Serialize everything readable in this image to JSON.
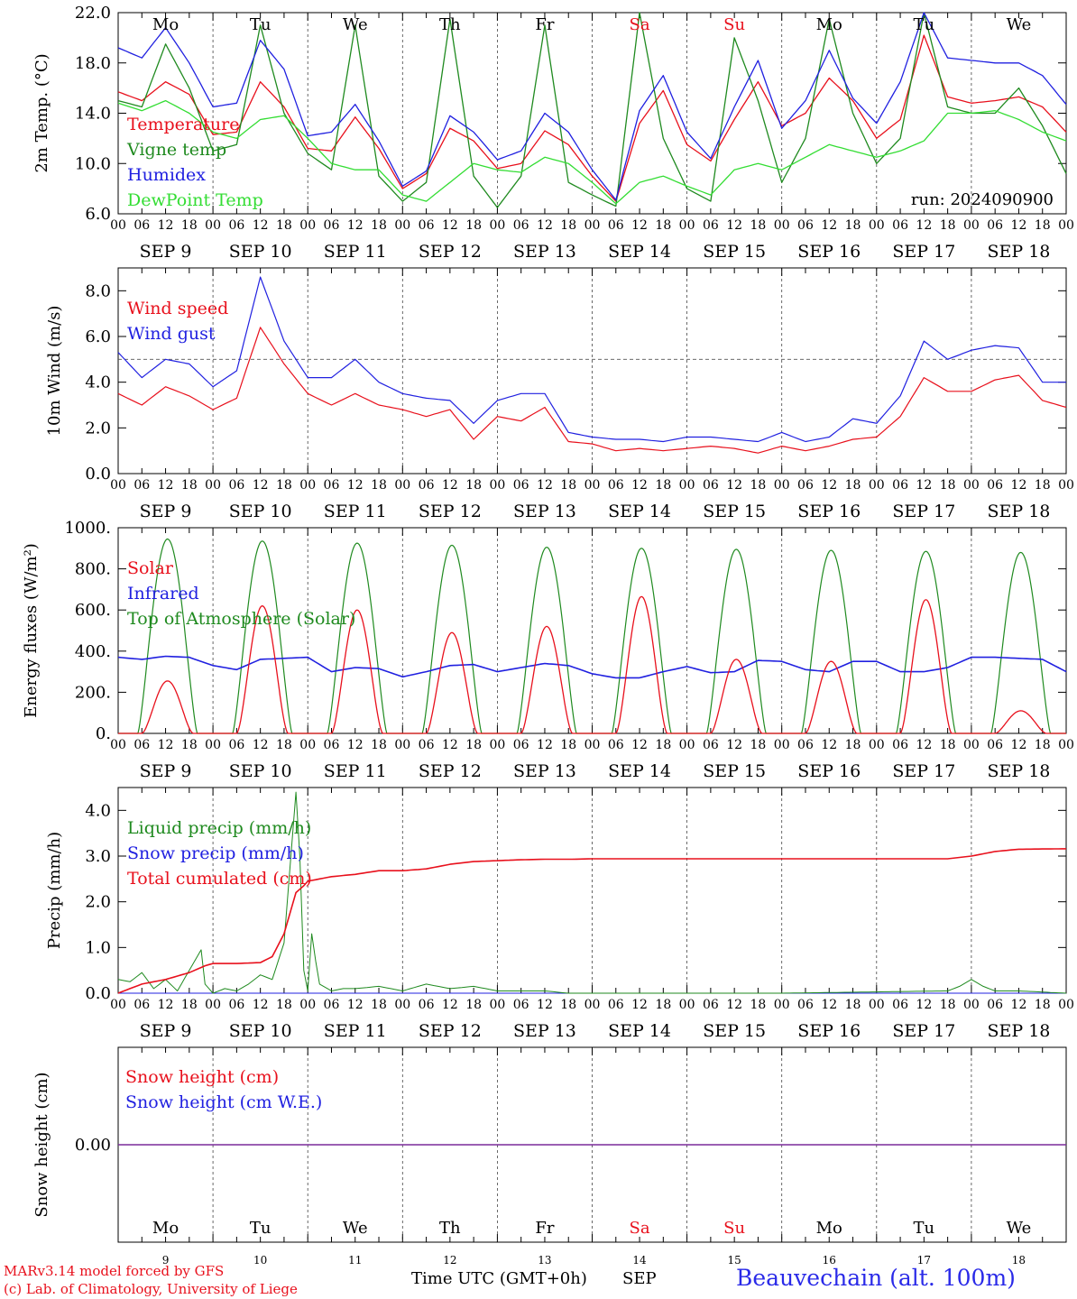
{
  "footer": {
    "model": "MARv3.14 model forced by GFS",
    "lab": "(c) Lab. of Climatology, University of Liege",
    "xlabel": "Time UTC (GMT+0h)",
    "month": "SEP",
    "station": "Beauvechain (alt. 100m)"
  },
  "colors": {
    "red": "#e8101c",
    "green": "#1f8a1f",
    "blue": "#2020e0",
    "lightgreen": "#33dd33",
    "purple": "#7a2a9a",
    "weekend": "#e8101c"
  },
  "chart_data": [
    {
      "type": "line",
      "ylabel": "2m Temp. (°C)",
      "ylim": [
        6,
        22
      ],
      "yticks": [
        "6.0",
        "10.0",
        "14.0",
        "18.0",
        "22.0"
      ],
      "xlim_hours": [
        0,
        240
      ],
      "annotation": "run: 2024090900",
      "series": [
        {
          "name": "Temperature",
          "color": "red",
          "x": [
            0,
            6,
            12,
            18,
            24,
            30,
            36,
            42,
            48,
            54,
            60,
            66,
            72,
            78,
            84,
            90,
            96,
            102,
            108,
            114,
            120,
            126,
            132,
            138,
            144,
            150,
            156,
            162,
            168,
            174,
            180,
            186,
            192,
            198,
            204,
            210,
            216,
            222,
            228,
            234,
            240
          ],
          "values": [
            15.7,
            15.0,
            16.5,
            15.5,
            12.3,
            12.5,
            16.5,
            14.5,
            11.2,
            11.0,
            13.7,
            11.2,
            8.0,
            9.2,
            12.8,
            11.8,
            9.6,
            10.0,
            12.6,
            11.5,
            9.0,
            7.0,
            13.2,
            15.8,
            11.5,
            10.2,
            13.5,
            16.5,
            13.0,
            14.0,
            16.8,
            15.0,
            12.0,
            13.5,
            20.2,
            15.3,
            14.8,
            15.0,
            15.3,
            14.5,
            12.5
          ]
        },
        {
          "name": "Vigne temp",
          "color": "green",
          "x": [
            0,
            6,
            12,
            18,
            24,
            30,
            36,
            42,
            48,
            54,
            60,
            66,
            72,
            78,
            84,
            90,
            96,
            102,
            108,
            114,
            120,
            126,
            132,
            138,
            144,
            150,
            156,
            162,
            168,
            174,
            180,
            186,
            192,
            198,
            204,
            210,
            216,
            222,
            228,
            234,
            240
          ],
          "values": [
            15.0,
            14.5,
            19.5,
            16.0,
            11.0,
            11.5,
            21.0,
            14.0,
            10.8,
            9.5,
            21.0,
            9.0,
            7.0,
            8.5,
            21.5,
            9.0,
            6.5,
            9.0,
            21.0,
            8.5,
            7.5,
            6.6,
            22.0,
            12.0,
            8.0,
            7.0,
            20.0,
            15.0,
            8.5,
            12.0,
            21.5,
            14.0,
            10.0,
            12.0,
            22.0,
            14.5,
            14.0,
            14.0,
            16.0,
            13.0,
            9.2
          ]
        },
        {
          "name": "Humidex",
          "color": "blue",
          "x": [
            0,
            6,
            12,
            18,
            24,
            30,
            36,
            42,
            48,
            54,
            60,
            66,
            72,
            78,
            84,
            90,
            96,
            102,
            108,
            114,
            120,
            126,
            132,
            138,
            144,
            150,
            156,
            162,
            168,
            174,
            180,
            186,
            192,
            198,
            204,
            210,
            216,
            222,
            228,
            234,
            240
          ],
          "values": [
            19.2,
            18.4,
            20.8,
            18.0,
            14.5,
            14.8,
            19.8,
            17.5,
            12.2,
            12.5,
            14.7,
            11.8,
            8.2,
            9.4,
            13.8,
            12.5,
            10.3,
            11.0,
            14.0,
            12.5,
            9.5,
            7.1,
            14.2,
            17.0,
            12.5,
            10.4,
            14.5,
            18.2,
            12.8,
            15.0,
            19.0,
            15.2,
            13.2,
            16.5,
            22.0,
            18.4,
            18.2,
            18.0,
            18.0,
            17.0,
            14.7
          ]
        },
        {
          "name": "DewPoint Temp",
          "color": "lightgreen",
          "x": [
            0,
            6,
            12,
            18,
            24,
            30,
            36,
            42,
            48,
            54,
            60,
            66,
            72,
            78,
            84,
            90,
            96,
            102,
            108,
            114,
            120,
            126,
            132,
            138,
            144,
            150,
            156,
            162,
            168,
            174,
            180,
            186,
            192,
            198,
            204,
            210,
            216,
            222,
            228,
            234,
            240
          ],
          "values": [
            14.8,
            14.2,
            15.0,
            14.0,
            12.5,
            12.0,
            13.5,
            13.8,
            12.0,
            10.0,
            9.5,
            9.5,
            7.5,
            7.0,
            8.5,
            10.0,
            9.5,
            9.3,
            10.5,
            10.0,
            8.5,
            6.8,
            8.5,
            9.0,
            8.2,
            7.5,
            9.5,
            10.0,
            9.5,
            10.5,
            11.5,
            11.0,
            10.5,
            11.0,
            11.8,
            14.0,
            14.0,
            14.2,
            13.5,
            12.5,
            11.8
          ]
        }
      ]
    },
    {
      "type": "line",
      "ylabel": "10m Wind (m/s)",
      "ylim": [
        0,
        9
      ],
      "yticks": [
        "0.0",
        "2.0",
        "4.0",
        "6.0",
        "8.0"
      ],
      "reference_line": 5.0,
      "series": [
        {
          "name": "Wind speed",
          "color": "red",
          "x": [
            0,
            6,
            12,
            18,
            24,
            30,
            36,
            42,
            48,
            54,
            60,
            66,
            72,
            78,
            84,
            90,
            96,
            102,
            108,
            114,
            120,
            126,
            132,
            138,
            144,
            150,
            156,
            162,
            168,
            174,
            180,
            186,
            192,
            198,
            204,
            210,
            216,
            222,
            228,
            234,
            240
          ],
          "values": [
            3.5,
            3.0,
            3.8,
            3.4,
            2.8,
            3.3,
            6.4,
            4.8,
            3.5,
            3.0,
            3.5,
            3.0,
            2.8,
            2.5,
            2.8,
            1.5,
            2.5,
            2.3,
            2.9,
            1.4,
            1.3,
            1.0,
            1.1,
            1.0,
            1.1,
            1.2,
            1.1,
            0.9,
            1.2,
            1.0,
            1.2,
            1.5,
            1.6,
            2.5,
            4.2,
            3.6,
            3.6,
            4.1,
            4.3,
            3.2,
            2.9
          ]
        },
        {
          "name": "Wind gust",
          "color": "blue",
          "x": [
            0,
            6,
            12,
            18,
            24,
            30,
            36,
            42,
            48,
            54,
            60,
            66,
            72,
            78,
            84,
            90,
            96,
            102,
            108,
            114,
            120,
            126,
            132,
            138,
            144,
            150,
            156,
            162,
            168,
            174,
            180,
            186,
            192,
            198,
            204,
            210,
            216,
            222,
            228,
            234,
            240
          ],
          "values": [
            5.3,
            4.2,
            5.0,
            4.8,
            3.8,
            4.5,
            8.6,
            5.8,
            4.2,
            4.2,
            5.0,
            4.0,
            3.5,
            3.3,
            3.2,
            2.2,
            3.2,
            3.5,
            3.5,
            1.8,
            1.6,
            1.5,
            1.5,
            1.4,
            1.6,
            1.6,
            1.5,
            1.4,
            1.8,
            1.4,
            1.6,
            2.4,
            2.2,
            3.4,
            5.8,
            5.0,
            5.4,
            5.6,
            5.5,
            4.0,
            4.0
          ]
        }
      ]
    },
    {
      "type": "line",
      "ylabel": "Energy fluxes (W/m²)",
      "ylim": [
        0,
        1000
      ],
      "yticks": [
        "0.",
        "200.",
        "400.",
        "600.",
        "800.",
        "1000."
      ],
      "series": [
        {
          "name": "Solar",
          "color": "red",
          "daily_peak": [
            255,
            620,
            600,
            490,
            520,
            665,
            360,
            350,
            650,
            110
          ]
        },
        {
          "name": "Infrared",
          "color": "blue",
          "x": [
            0,
            6,
            12,
            18,
            24,
            30,
            36,
            42,
            48,
            54,
            60,
            66,
            72,
            78,
            84,
            90,
            96,
            102,
            108,
            114,
            120,
            126,
            132,
            138,
            144,
            150,
            156,
            162,
            168,
            174,
            180,
            186,
            192,
            198,
            204,
            210,
            216,
            222,
            228,
            234,
            240
          ],
          "values": [
            370,
            360,
            375,
            370,
            330,
            310,
            360,
            365,
            370,
            300,
            320,
            315,
            275,
            300,
            330,
            335,
            300,
            320,
            340,
            330,
            290,
            270,
            270,
            300,
            325,
            295,
            300,
            355,
            350,
            310,
            300,
            350,
            350,
            300,
            300,
            320,
            370,
            370,
            365,
            360,
            300
          ]
        },
        {
          "name": "Top of Atmosphere (Solar)",
          "color": "green",
          "daily_peak": [
            945,
            935,
            925,
            915,
            905,
            900,
            895,
            890,
            885,
            880
          ]
        }
      ]
    },
    {
      "type": "line",
      "ylabel": "Precip (mm/h)",
      "ylim": [
        0,
        4.5
      ],
      "yticks": [
        "0.0",
        "1.0",
        "2.0",
        "3.0",
        "4.0"
      ],
      "series": [
        {
          "name": "Liquid precip (mm/h)",
          "color": "green",
          "x": [
            0,
            3,
            6,
            9,
            12,
            15,
            18,
            21,
            22,
            24,
            27,
            30,
            33,
            36,
            39,
            42,
            45,
            46,
            47,
            48,
            49,
            50,
            51,
            53,
            54,
            57,
            60,
            66,
            72,
            78,
            84,
            90,
            96,
            102,
            108,
            114,
            120,
            168,
            210,
            213,
            216,
            219,
            222,
            228,
            240
          ],
          "values": [
            0.3,
            0.25,
            0.45,
            0.1,
            0.3,
            0.05,
            0.5,
            0.95,
            0.2,
            0.0,
            0.1,
            0.05,
            0.2,
            0.4,
            0.3,
            1.1,
            4.4,
            3.0,
            0.5,
            0.05,
            1.3,
            0.7,
            0.2,
            0.1,
            0.05,
            0.1,
            0.1,
            0.15,
            0.05,
            0.2,
            0.1,
            0.15,
            0.05,
            0.05,
            0.05,
            0.0,
            0.0,
            0.0,
            0.05,
            0.15,
            0.3,
            0.15,
            0.05,
            0.05,
            0.0
          ]
        },
        {
          "name": "Snow precip (mm/h)",
          "color": "blue",
          "x": [
            0,
            240
          ],
          "values": [
            0,
            0
          ]
        },
        {
          "name": "Total cumulated (cm)",
          "color": "red",
          "x": [
            0,
            6,
            12,
            18,
            22,
            24,
            30,
            36,
            39,
            42,
            45,
            47,
            48,
            54,
            60,
            66,
            72,
            78,
            84,
            90,
            96,
            102,
            108,
            114,
            120,
            168,
            210,
            216,
            222,
            228,
            240
          ],
          "values": [
            0.0,
            0.2,
            0.3,
            0.45,
            0.6,
            0.65,
            0.65,
            0.67,
            0.8,
            1.3,
            2.2,
            2.35,
            2.45,
            2.55,
            2.6,
            2.68,
            2.68,
            2.72,
            2.82,
            2.88,
            2.9,
            2.92,
            2.93,
            2.93,
            2.94,
            2.94,
            2.94,
            3.0,
            3.1,
            3.15,
            3.16
          ]
        }
      ]
    },
    {
      "type": "line",
      "ylabel": "Snow height (cm)",
      "yticks": [
        "0.00"
      ],
      "series": [
        {
          "name": "Snow height (cm)",
          "color": "red",
          "x": [
            0,
            240
          ],
          "values": [
            0,
            0
          ]
        },
        {
          "name": "Snow height (cm W.E.)",
          "color": "blue",
          "x": [
            0,
            240
          ],
          "values": [
            0,
            0
          ]
        }
      ]
    }
  ],
  "axis": {
    "weekdays": [
      "Mo",
      "Tu",
      "We",
      "Th",
      "Fr",
      "Sa",
      "Su",
      "Mo",
      "Tu",
      "We"
    ],
    "weekend_flags": [
      false,
      false,
      false,
      false,
      false,
      true,
      true,
      false,
      false,
      false
    ],
    "dates": [
      "SEP  9",
      "SEP 10",
      "SEP 11",
      "SEP 12",
      "SEP 13",
      "SEP 14",
      "SEP 15",
      "SEP 16",
      "SEP 17",
      "SEP 18"
    ],
    "day_numbers": [
      "9",
      "10",
      "11",
      "12",
      "13",
      "14",
      "15",
      "16",
      "17",
      "18"
    ],
    "hour_labels": [
      "00",
      "06",
      "12",
      "18"
    ],
    "end_hour_label": "00"
  }
}
